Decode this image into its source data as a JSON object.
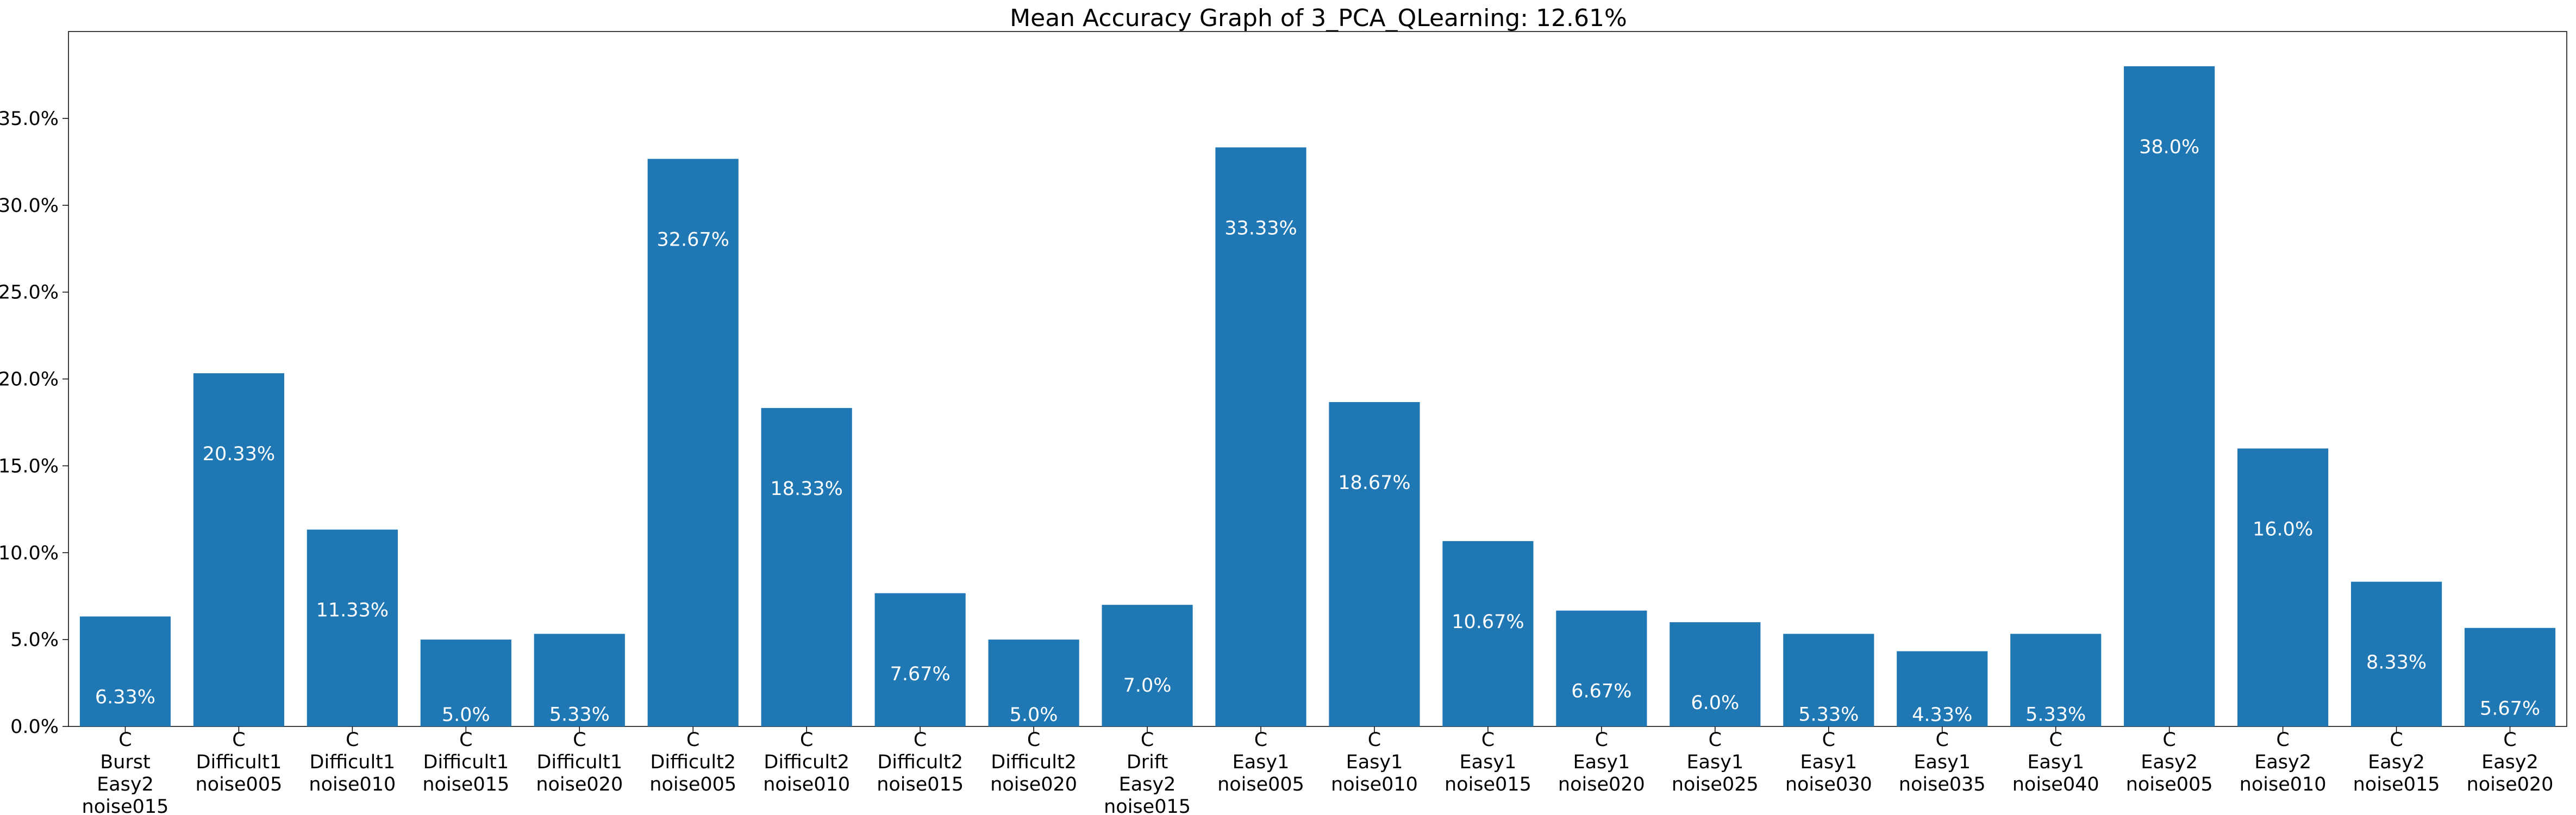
{
  "chart_data": {
    "type": "bar",
    "title": "Mean Accuracy Graph of 3_PCA_QLearning: 12.61%",
    "xlabel": "",
    "ylabel": "",
    "ylim": [
      0,
      40.0
    ],
    "grid": false,
    "legend": "none",
    "bar_color": "#1f77b4",
    "label_color": "#ffffff",
    "yticks": [
      0.0,
      5.0,
      10.0,
      15.0,
      20.0,
      25.0,
      30.0,
      35.0
    ],
    "ytick_labels": [
      "0.0%",
      "5.0%",
      "10.0%",
      "15.0%",
      "20.0%",
      "25.0%",
      "30.0%",
      "35.0%"
    ],
    "categories": [
      [
        "C",
        "Burst",
        "Easy2",
        "noise015"
      ],
      [
        "C",
        "Difficult1",
        "noise005"
      ],
      [
        "C",
        "Difficult1",
        "noise010"
      ],
      [
        "C",
        "Difficult1",
        "noise015"
      ],
      [
        "C",
        "Difficult1",
        "noise020"
      ],
      [
        "C",
        "Difficult2",
        "noise005"
      ],
      [
        "C",
        "Difficult2",
        "noise010"
      ],
      [
        "C",
        "Difficult2",
        "noise015"
      ],
      [
        "C",
        "Difficult2",
        "noise020"
      ],
      [
        "C",
        "Drift",
        "Easy2",
        "noise015"
      ],
      [
        "C",
        "Easy1",
        "noise005"
      ],
      [
        "C",
        "Easy1",
        "noise010"
      ],
      [
        "C",
        "Easy1",
        "noise015"
      ],
      [
        "C",
        "Easy1",
        "noise020"
      ],
      [
        "C",
        "Easy1",
        "noise025"
      ],
      [
        "C",
        "Easy1",
        "noise030"
      ],
      [
        "C",
        "Easy1",
        "noise035"
      ],
      [
        "C",
        "Easy1",
        "noise040"
      ],
      [
        "C",
        "Easy2",
        "noise005"
      ],
      [
        "C",
        "Easy2",
        "noise010"
      ],
      [
        "C",
        "Easy2",
        "noise015"
      ],
      [
        "C",
        "Easy2",
        "noise020"
      ]
    ],
    "values": [
      6.33,
      20.33,
      11.33,
      5.0,
      5.33,
      32.67,
      18.33,
      7.67,
      5.0,
      7.0,
      33.33,
      18.67,
      10.67,
      6.67,
      6.0,
      5.33,
      4.33,
      5.33,
      38.0,
      16.0,
      8.33,
      5.67
    ],
    "value_labels": [
      "6.33%",
      "20.33%",
      "11.33%",
      "5.0%",
      "5.33%",
      "32.67%",
      "18.33%",
      "7.67%",
      "5.0%",
      "7.0%",
      "33.33%",
      "18.67%",
      "10.67%",
      "6.67%",
      "6.0%",
      "5.33%",
      "4.33%",
      "5.33%",
      "38.0%",
      "16.0%",
      "8.33%",
      "5.67%"
    ]
  }
}
